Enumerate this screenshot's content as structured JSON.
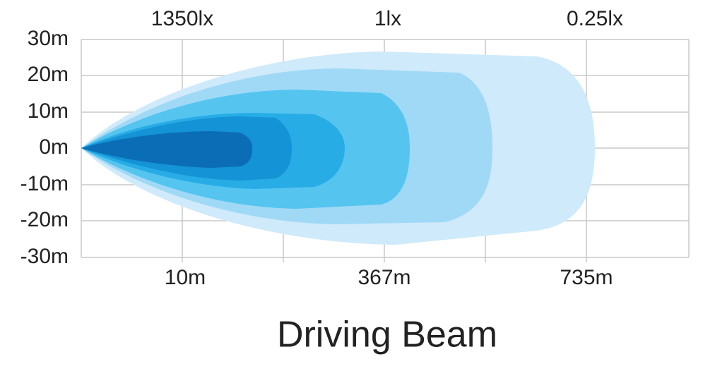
{
  "y_axis": {
    "labels": [
      "30m",
      "20m",
      "10m",
      "0m",
      "-10m",
      "-20m",
      "-30m"
    ]
  },
  "top_labels": [
    "1350lx",
    "1lx",
    "0.25lx"
  ],
  "bottom_labels": [
    "10m",
    "367m",
    "735m"
  ],
  "title": "Driving Beam"
}
